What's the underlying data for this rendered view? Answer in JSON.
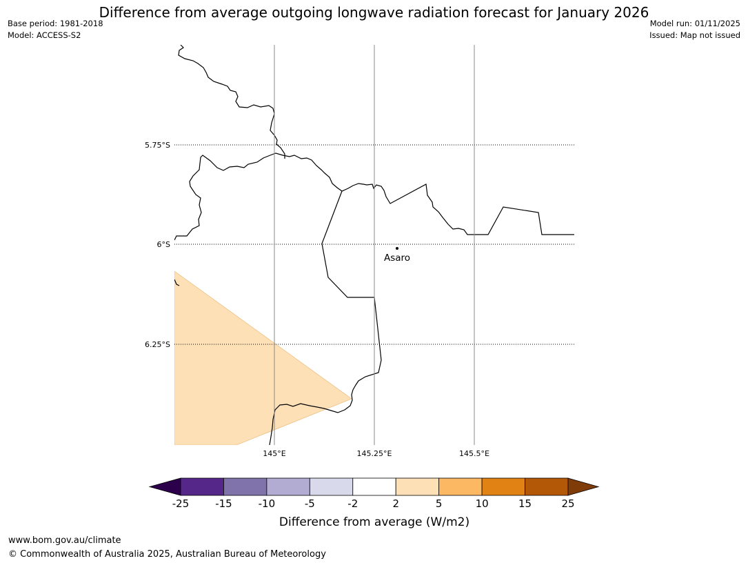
{
  "title": "Difference from average outgoing longwave radiation forecast for January 2026",
  "meta": {
    "base_period": "Base period: 1981-2018",
    "model": "Model: ACCESS-S2",
    "model_run": "Model run: 01/11/2025",
    "issued": "Issued: Map not issued"
  },
  "map": {
    "latitude_labels": [
      "5.75°S",
      "6°S",
      "6.25°S"
    ],
    "longitude_labels": [
      "145°E",
      "145.25°E",
      "145.5°E"
    ],
    "place": {
      "name": "Asaro",
      "lat": -6.01,
      "lon": 145.3
    },
    "anomaly_region": {
      "category": "2 to 5",
      "color": "#fde0b6"
    }
  },
  "colorbar": {
    "title": "Difference from average (W/m2)",
    "tick_labels": [
      "-25",
      "-15",
      "-10",
      "-5",
      "-2",
      "2",
      "5",
      "10",
      "15",
      "25"
    ],
    "under_color": "#2d004b",
    "over_color": "#7f3b08",
    "bins": [
      {
        "range": "-25 to -15",
        "color": "#542788"
      },
      {
        "range": "-15 to -10",
        "color": "#8073ac"
      },
      {
        "range": "-10 to -5",
        "color": "#b2abd2"
      },
      {
        "range": "-5 to -2",
        "color": "#d8daeb"
      },
      {
        "range": "-2 to 2",
        "color": "#ffffff"
      },
      {
        "range": "2 to 5",
        "color": "#fee0b6"
      },
      {
        "range": "5 to 10",
        "color": "#fdb863"
      },
      {
        "range": "10 to 15",
        "color": "#e08214"
      },
      {
        "range": "15 to 25",
        "color": "#b35806"
      }
    ]
  },
  "footer": {
    "url": "www.bom.gov.au/climate",
    "copyright": "© Commonwealth of Australia 2025, Australian Bureau of Meteorology"
  }
}
